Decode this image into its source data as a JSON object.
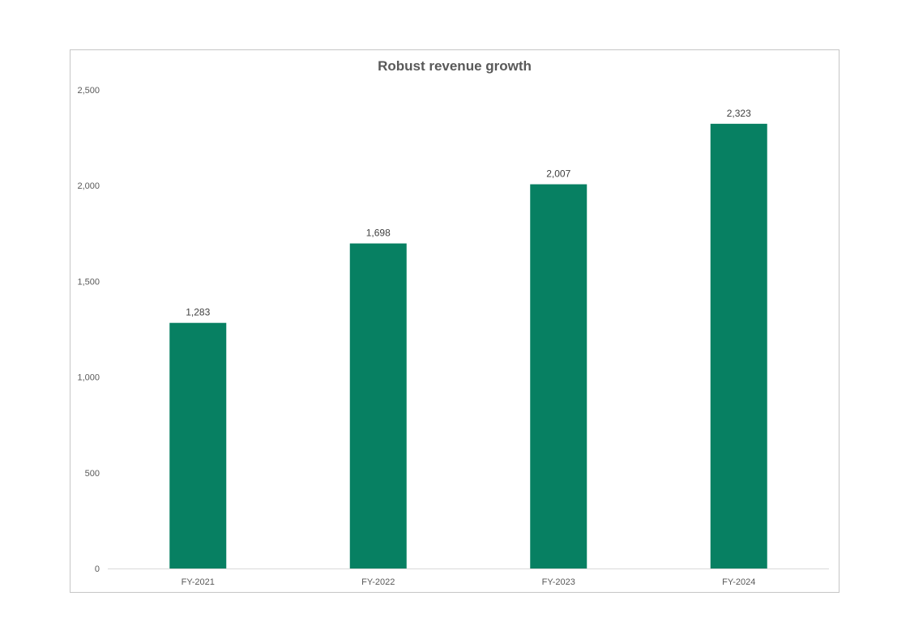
{
  "chart_data": {
    "type": "bar",
    "title": "Robust revenue growth",
    "xlabel": "",
    "ylabel": "",
    "categories": [
      "FY-2021",
      "FY-2022",
      "FY-2023",
      "FY-2024"
    ],
    "values": [
      1283,
      1698,
      2007,
      2323
    ],
    "data_labels": [
      "1,283",
      "1,698",
      "2,007",
      "2,323"
    ],
    "ylim": [
      0,
      2500
    ],
    "yticks": [
      0,
      500,
      1000,
      1500,
      2000,
      2500
    ],
    "ytick_labels": [
      "0",
      "500",
      "1,000",
      "1,500",
      "2,000",
      "2,500"
    ],
    "grid": false,
    "legend": "none",
    "bar_color": "#078062",
    "axis_color": "#d9d9d9"
  }
}
